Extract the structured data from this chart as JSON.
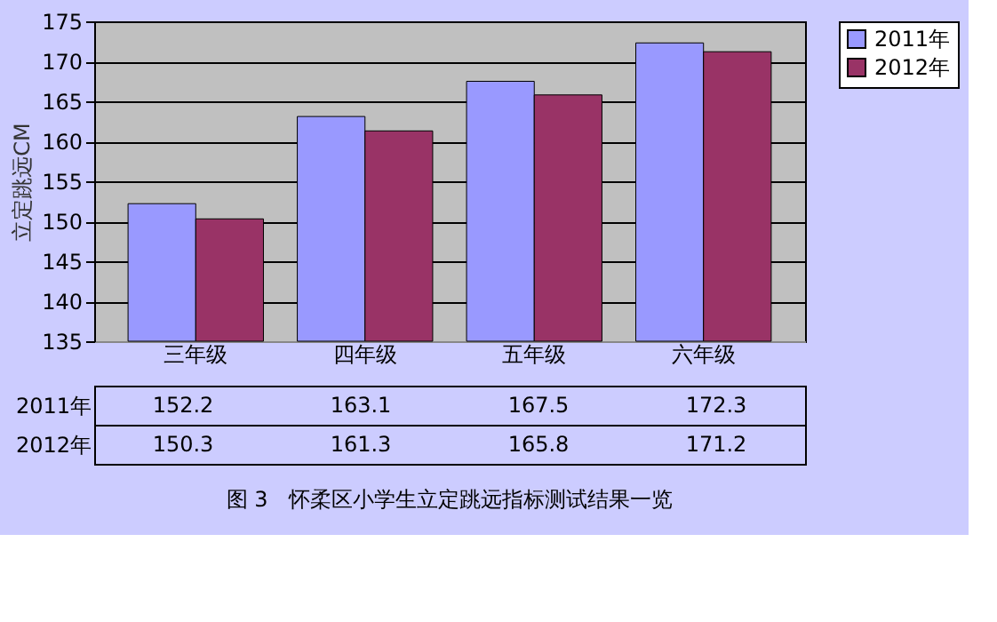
{
  "chart_data": {
    "type": "bar",
    "ylabel": "立定跳远CM",
    "categories": [
      "三年级",
      "四年级",
      "五年级",
      "六年级"
    ],
    "series": [
      {
        "name": "2011年",
        "color": "#9999ff",
        "values": [
          152.2,
          163.1,
          167.5,
          172.3
        ]
      },
      {
        "name": "2012年",
        "color": "#993366",
        "values": [
          150.3,
          161.3,
          165.8,
          171.2
        ]
      }
    ],
    "ylim": [
      135,
      175
    ],
    "yticks": [
      135,
      140,
      145,
      150,
      155,
      160,
      165,
      170,
      175
    ],
    "grid": "y",
    "legend": "right",
    "data_labels": true,
    "annotations": [
      "图 3　怀柔区小学生立定跳远指标测试结果一览"
    ]
  }
}
